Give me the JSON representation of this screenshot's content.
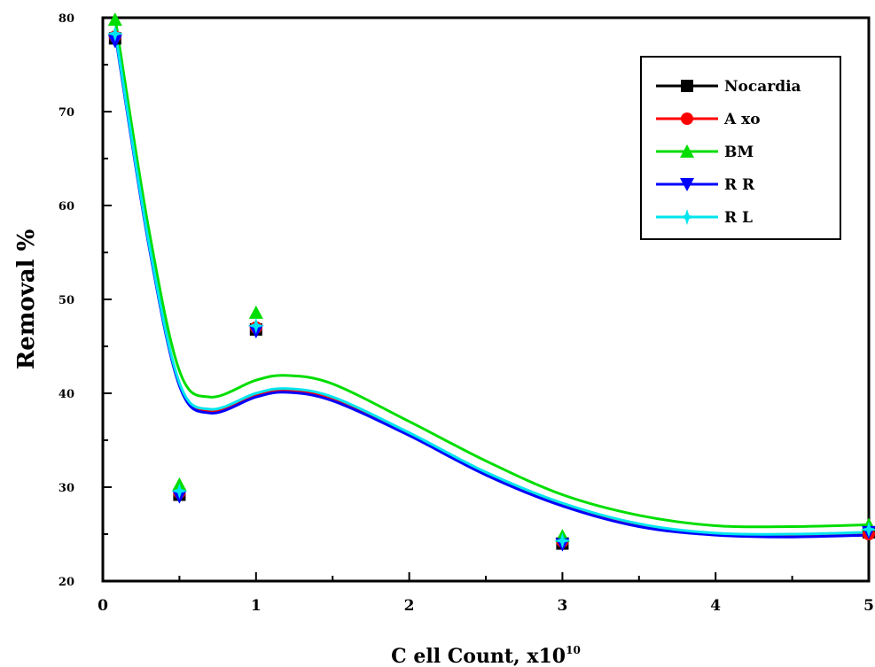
{
  "chart_data": {
    "type": "line",
    "xlabel": "C ell Count, x10",
    "xlabel_sup": "10",
    "ylabel": "Removal %",
    "xlim": [
      0,
      5
    ],
    "ylim": [
      20,
      80
    ],
    "x_ticks": [
      0,
      1,
      2,
      3,
      4,
      5
    ],
    "y_ticks": [
      20,
      30,
      40,
      50,
      60,
      70,
      80
    ],
    "grid": false,
    "legend_position": "top-right",
    "series": [
      {
        "name": "Nocardia",
        "color": "#000000",
        "marker": "square",
        "points": [
          [
            0.08,
            77.8
          ],
          [
            0.5,
            29.2
          ],
          [
            1.0,
            46.8
          ],
          [
            3.0,
            24.0
          ],
          [
            5.0,
            25.2
          ]
        ],
        "curve": [
          [
            0.08,
            78.5
          ],
          [
            0.3,
            56.0
          ],
          [
            0.5,
            41.0
          ],
          [
            0.7,
            38.1
          ],
          [
            1.0,
            39.8
          ],
          [
            1.2,
            40.3
          ],
          [
            1.5,
            39.4
          ],
          [
            2.0,
            35.7
          ],
          [
            2.5,
            31.5
          ],
          [
            3.0,
            28.2
          ],
          [
            3.5,
            26.0
          ],
          [
            4.0,
            25.0
          ],
          [
            4.5,
            24.9
          ],
          [
            5.0,
            25.1
          ]
        ]
      },
      {
        "name": "A xo",
        "color": "#ff0000",
        "marker": "circle",
        "points": [
          [
            0.08,
            78.0
          ],
          [
            0.5,
            29.4
          ],
          [
            1.0,
            47.0
          ],
          [
            3.0,
            24.2
          ],
          [
            5.0,
            25.0
          ]
        ],
        "curve": [
          [
            0.08,
            78.5
          ],
          [
            0.3,
            56.0
          ],
          [
            0.5,
            41.0
          ],
          [
            0.7,
            38.1
          ],
          [
            1.0,
            39.8
          ],
          [
            1.2,
            40.3
          ],
          [
            1.5,
            39.4
          ],
          [
            2.0,
            35.7
          ],
          [
            2.5,
            31.5
          ],
          [
            3.0,
            28.2
          ],
          [
            3.5,
            26.0
          ],
          [
            4.0,
            25.0
          ],
          [
            4.5,
            24.9
          ],
          [
            5.0,
            25.1
          ]
        ]
      },
      {
        "name": "BM",
        "color": "#00dd00",
        "marker": "triangle-up",
        "points": [
          [
            0.08,
            79.8
          ],
          [
            0.5,
            30.3
          ],
          [
            1.0,
            48.6
          ],
          [
            3.0,
            24.8
          ],
          [
            5.0,
            26.0
          ]
        ],
        "curve": [
          [
            0.08,
            80.0
          ],
          [
            0.3,
            57.5
          ],
          [
            0.5,
            42.4
          ],
          [
            0.7,
            39.6
          ],
          [
            1.0,
            41.4
          ],
          [
            1.2,
            41.9
          ],
          [
            1.5,
            41.0
          ],
          [
            2.0,
            37.0
          ],
          [
            2.5,
            32.8
          ],
          [
            3.0,
            29.2
          ],
          [
            3.5,
            27.0
          ],
          [
            4.0,
            25.9
          ],
          [
            4.5,
            25.8
          ],
          [
            5.0,
            26.0
          ]
        ]
      },
      {
        "name": "R R",
        "color": "#0000ff",
        "marker": "triangle-down",
        "points": [
          [
            0.08,
            77.5
          ],
          [
            0.5,
            29.0
          ],
          [
            1.0,
            46.6
          ],
          [
            3.0,
            23.9
          ],
          [
            5.0,
            25.2
          ]
        ],
        "curve": [
          [
            0.08,
            78.3
          ],
          [
            0.3,
            55.8
          ],
          [
            0.5,
            40.8
          ],
          [
            0.7,
            37.9
          ],
          [
            1.0,
            39.6
          ],
          [
            1.2,
            40.1
          ],
          [
            1.5,
            39.2
          ],
          [
            2.0,
            35.5
          ],
          [
            2.5,
            31.3
          ],
          [
            3.0,
            28.0
          ],
          [
            3.5,
            25.8
          ],
          [
            4.0,
            24.9
          ],
          [
            4.5,
            24.7
          ],
          [
            5.0,
            24.9
          ]
        ]
      },
      {
        "name": "R L",
        "color": "#00e5ee",
        "marker": "star",
        "points": [
          [
            0.08,
            78.3
          ],
          [
            0.5,
            29.6
          ],
          [
            1.0,
            47.2
          ],
          [
            3.0,
            24.3
          ],
          [
            5.0,
            25.5
          ]
        ],
        "curve": [
          [
            0.08,
            78.6
          ],
          [
            0.3,
            56.1
          ],
          [
            0.5,
            41.1
          ],
          [
            0.7,
            38.3
          ],
          [
            1.0,
            40.0
          ],
          [
            1.2,
            40.5
          ],
          [
            1.5,
            39.6
          ],
          [
            2.0,
            35.8
          ],
          [
            2.5,
            31.6
          ],
          [
            3.0,
            28.3
          ],
          [
            3.5,
            26.1
          ],
          [
            4.0,
            25.1
          ],
          [
            4.5,
            25.0
          ],
          [
            5.0,
            25.2
          ]
        ]
      }
    ]
  }
}
